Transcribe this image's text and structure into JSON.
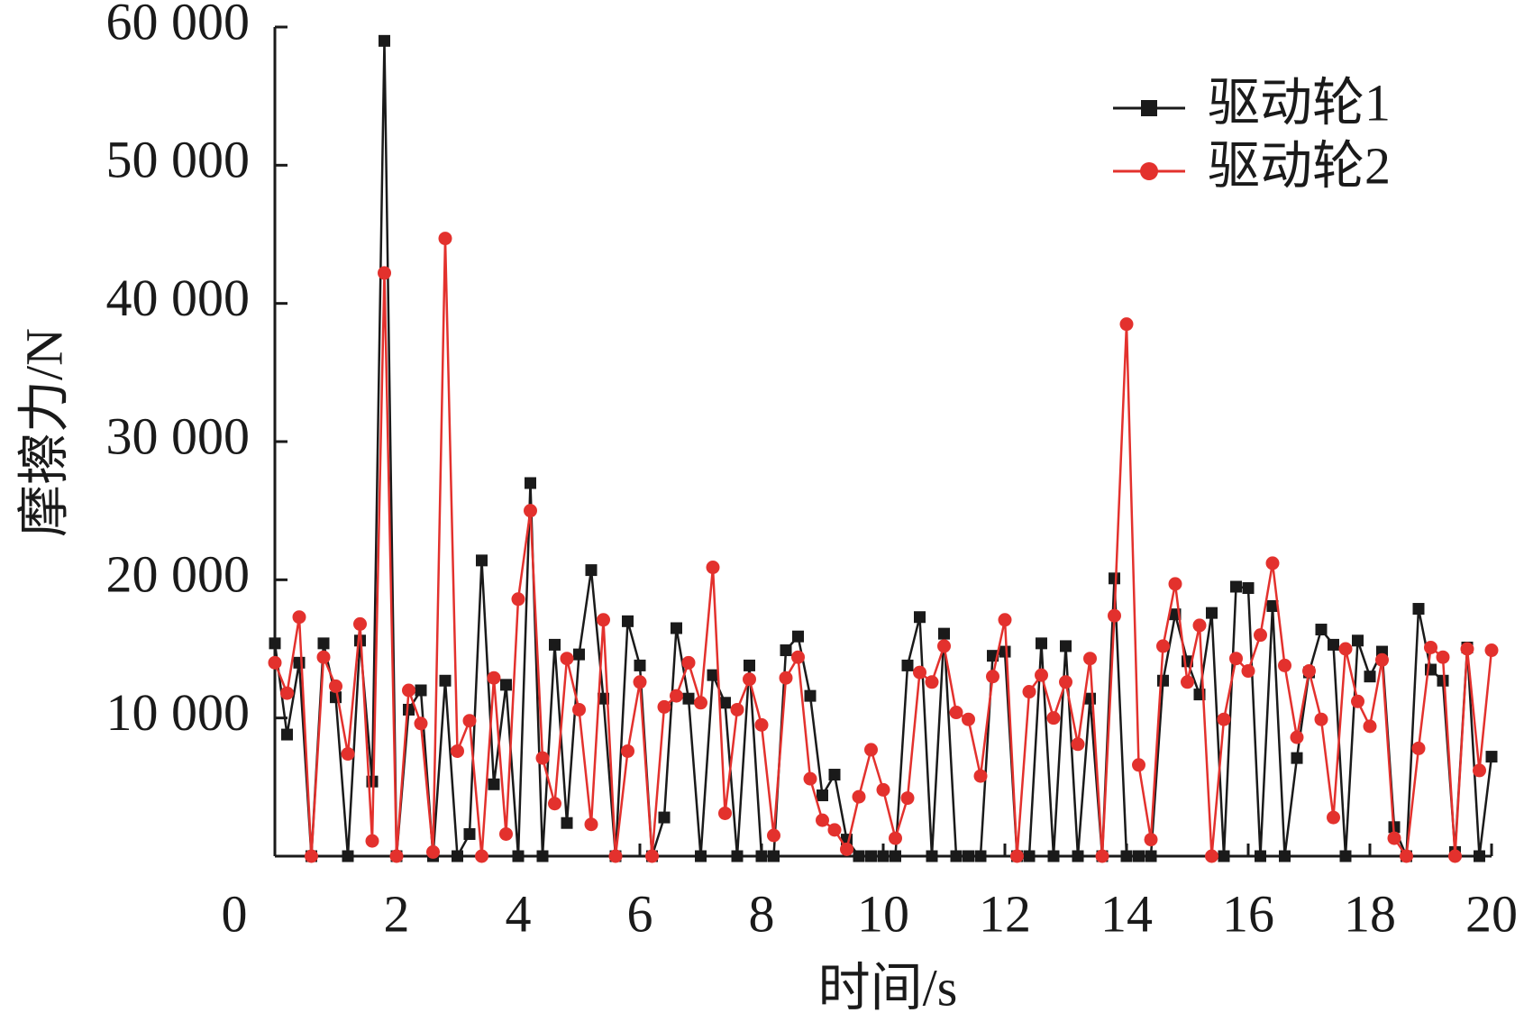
{
  "chart_data": {
    "type": "line",
    "x_label": "时间/s",
    "y_label": "摩擦力/N",
    "x": [
      0,
      0.2,
      0.4,
      0.6,
      0.8,
      1,
      1.2,
      1.4,
      1.6,
      1.8,
      2,
      2.2,
      2.4,
      2.6,
      2.8,
      3,
      3.2,
      3.4,
      3.6,
      3.8,
      4,
      4.2,
      4.4,
      4.6,
      4.8,
      5,
      5.2,
      5.4,
      5.6,
      5.8,
      6,
      6.2,
      6.4,
      6.6,
      6.8,
      7,
      7.2,
      7.4,
      7.6,
      7.8,
      8,
      8.2,
      8.4,
      8.6,
      8.8,
      9,
      9.2,
      9.4,
      9.6,
      9.8,
      10,
      10.2,
      10.4,
      10.6,
      10.8,
      11,
      11.2,
      11.4,
      11.6,
      11.8,
      12,
      12.2,
      12.4,
      12.6,
      12.8,
      13,
      13.2,
      13.4,
      13.6,
      13.8,
      14,
      14.2,
      14.4,
      14.6,
      14.8,
      15,
      15.2,
      15.4,
      15.6,
      15.8,
      16,
      16.2,
      16.4,
      16.6,
      16.8,
      17,
      17.2,
      17.4,
      17.6,
      17.8,
      18,
      18.2,
      18.4,
      18.6,
      18.8,
      19,
      19.2,
      19.4,
      19.6,
      19.8,
      20
    ],
    "series": [
      {
        "name": "驱动轮1",
        "color": "#1a1a1a",
        "marker": "square",
        "values": [
          15400,
          8800,
          14000,
          0,
          15400,
          11500,
          0,
          15600,
          5400,
          59000,
          0,
          10600,
          12000,
          0,
          12700,
          0,
          1600,
          21400,
          5200,
          12400,
          0,
          27000,
          0,
          15300,
          2400,
          14600,
          20700,
          11400,
          0,
          17000,
          13800,
          0,
          2800,
          16500,
          11400,
          0,
          13100,
          11100,
          0,
          13800,
          0,
          0,
          14900,
          15900,
          11600,
          4400,
          5900,
          1200,
          0,
          0,
          0,
          0,
          13800,
          17300,
          0,
          16100,
          0,
          0,
          0,
          14500,
          14800,
          0,
          0,
          15400,
          0,
          15200,
          0,
          11400,
          0,
          20100,
          0,
          0,
          0,
          12700,
          17500,
          14100,
          11700,
          17600,
          0,
          19500,
          19400,
          0,
          18100,
          0,
          7100,
          13300,
          16400,
          15300,
          0,
          15600,
          13000,
          14800,
          2100,
          0,
          17900,
          13500,
          12700,
          300,
          15100,
          0,
          7200
        ]
      },
      {
        "name": "驱动轮2",
        "color": "#e3312d",
        "marker": "circle",
        "values": [
          14000,
          11800,
          17300,
          0,
          14400,
          12300,
          7400,
          16800,
          1100,
          42200,
          0,
          12000,
          9600,
          300,
          44700,
          7600,
          9800,
          0,
          12900,
          1600,
          18600,
          25000,
          7100,
          3800,
          14300,
          10600,
          2300,
          17100,
          0,
          7600,
          12600,
          0,
          10800,
          11600,
          14000,
          11100,
          20900,
          3100,
          10600,
          12800,
          9500,
          1500,
          12900,
          14400,
          5600,
          2600,
          1900,
          500,
          4300,
          7700,
          4800,
          1300,
          4200,
          13300,
          12600,
          15200,
          10400,
          9900,
          5800,
          13000,
          17100,
          0,
          11900,
          13100,
          10000,
          12600,
          8100,
          14300,
          0,
          17400,
          38500,
          6600,
          1200,
          15200,
          19700,
          12600,
          16700,
          0,
          9900,
          14300,
          13400,
          16000,
          21200,
          13800,
          8600,
          13400,
          9900,
          2800,
          15000,
          11200,
          9400,
          14200,
          1300,
          0,
          7800,
          15100,
          14400,
          0,
          15000,
          6200,
          14900
        ]
      }
    ],
    "xlim": [
      0,
      20
    ],
    "xticks": [
      0,
      2,
      4,
      6,
      8,
      10,
      12,
      14,
      16,
      18,
      20
    ],
    "ylim": [
      0,
      60000
    ],
    "yticks": [
      {
        "value": 10000,
        "label": "10 000"
      },
      {
        "value": 20000,
        "label": "20 000"
      },
      {
        "value": 30000,
        "label": "30 000"
      },
      {
        "value": 40000,
        "label": "40 000"
      },
      {
        "value": 50000,
        "label": "50 000"
      },
      {
        "value": 60000,
        "label": "60 000"
      }
    ],
    "legend": "top-right",
    "grid": false
  }
}
